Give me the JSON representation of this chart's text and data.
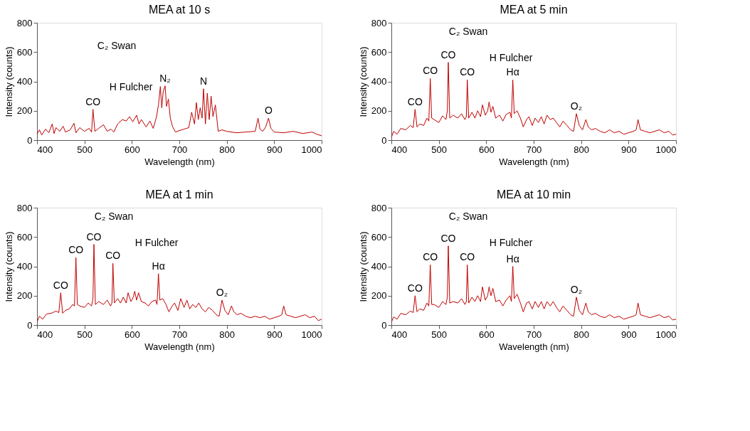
{
  "chart_data": [
    {
      "type": "line",
      "title": "MEA at 10 s",
      "xlabel": "Wavelength (nm)",
      "ylabel": "Intensity (counts)",
      "xlim": [
        400,
        1000
      ],
      "ylim": [
        0,
        800
      ],
      "xticks": [
        400,
        500,
        600,
        700,
        800,
        900,
        1000
      ],
      "yticks": [
        0,
        200,
        400,
        600,
        800
      ],
      "x": [
        400,
        405,
        410,
        418,
        425,
        432,
        436,
        440,
        448,
        455,
        460,
        470,
        478,
        482,
        490,
        500,
        510,
        515,
        518,
        522,
        530,
        540,
        548,
        556,
        562,
        570,
        580,
        588,
        595,
        602,
        610,
        615,
        620,
        630,
        638,
        645,
        652,
        656,
        660,
        663,
        666,
        670,
        673,
        677,
        681,
        686,
        692,
        700,
        710,
        720,
        726,
        732,
        736,
        740,
        744,
        748,
        751,
        755,
        759,
        763,
        767,
        771,
        776,
        782,
        790,
        800,
        820,
        840,
        860,
        866,
        870,
        876,
        882,
        888,
        893,
        900,
        920,
        940,
        960,
        980,
        990,
        1000
      ],
      "series": [
        {
          "color": "#c00000",
          "values": [
            40,
            70,
            35,
            75,
            50,
            110,
            45,
            85,
            60,
            95,
            55,
            70,
            115,
            50,
            85,
            60,
            80,
            55,
            210,
            60,
            80,
            105,
            60,
            75,
            55,
            110,
            140,
            130,
            160,
            125,
            170,
            110,
            140,
            90,
            130,
            80,
            160,
            240,
            365,
            220,
            330,
            370,
            230,
            280,
            150,
            90,
            55,
            65,
            75,
            85,
            190,
            110,
            255,
            140,
            220,
            150,
            350,
            110,
            320,
            140,
            300,
            160,
            240,
            60,
            70,
            60,
            50,
            55,
            60,
            150,
            75,
            60,
            90,
            150,
            80,
            55,
            50,
            60,
            45,
            55,
            40,
            30
          ]
        }
      ],
      "annotations": [
        "C₂ Swan",
        {
          "text": "CO",
          "x": 518,
          "y": 210
        },
        "H Fulcher",
        {
          "text": "N₂",
          "x": 670,
          "y": 370
        },
        {
          "text": "N",
          "x": 751,
          "y": 350
        },
        {
          "text": "O",
          "x": 888,
          "y": 150
        }
      ]
    },
    {
      "type": "line",
      "title": "MEA at 5 min",
      "xlabel": "Wavelength (nm)",
      "ylabel": "Intensity (counts)",
      "xlim": [
        400,
        1000
      ],
      "ylim": [
        0,
        800
      ],
      "xticks": [
        400,
        500,
        600,
        700,
        800,
        900,
        1000
      ],
      "yticks": [
        0,
        200,
        400,
        600,
        800
      ],
      "x": [
        400,
        405,
        412,
        420,
        430,
        440,
        446,
        450,
        454,
        460,
        468,
        475,
        479,
        482,
        485,
        490,
        500,
        508,
        515,
        518,
        520,
        523,
        530,
        540,
        548,
        555,
        558,
        560,
        563,
        570,
        576,
        582,
        588,
        592,
        598,
        603,
        606,
        610,
        614,
        620,
        628,
        635,
        642,
        650,
        653,
        656,
        659,
        665,
        672,
        678,
        685,
        690,
        697,
        703,
        710,
        716,
        722,
        728,
        735,
        741,
        748,
        755,
        762,
        770,
        778,
        784,
        790,
        796,
        803,
        810,
        815,
        822,
        830,
        840,
        850,
        860,
        870,
        880,
        890,
        900,
        910,
        916,
        920,
        925,
        935,
        945,
        955,
        965,
        975,
        985,
        993,
        1000
      ],
      "series": [
        {
          "color": "#c00000",
          "values": [
            20,
            60,
            40,
            80,
            70,
            100,
            85,
            210,
            90,
            110,
            100,
            150,
            130,
            420,
            150,
            140,
            120,
            165,
            140,
            200,
            530,
            150,
            170,
            150,
            180,
            140,
            160,
            410,
            150,
            190,
            150,
            200,
            160,
            240,
            170,
            200,
            260,
            190,
            230,
            150,
            170,
            130,
            175,
            190,
            150,
            410,
            180,
            200,
            150,
            90,
            140,
            160,
            100,
            150,
            120,
            160,
            110,
            170,
            140,
            150,
            120,
            90,
            130,
            100,
            70,
            60,
            180,
            100,
            70,
            140,
            90,
            70,
            80,
            60,
            50,
            70,
            50,
            60,
            40,
            50,
            60,
            70,
            140,
            70,
            60,
            50,
            60,
            70,
            50,
            60,
            35,
            40
          ]
        }
      ],
      "annotations": [
        "C₂ Swan",
        {
          "text": "CO",
          "x": 450,
          "y": 210
        },
        {
          "text": "CO",
          "x": 482,
          "y": 420
        },
        {
          "text": "CO",
          "x": 520,
          "y": 530
        },
        {
          "text": "CO",
          "x": 560,
          "y": 410
        },
        "H Fulcher",
        {
          "text": "Hα",
          "x": 656,
          "y": 410
        },
        {
          "text": "O₂",
          "x": 790,
          "y": 180
        }
      ]
    },
    {
      "type": "line",
      "title": "MEA at 1 min",
      "xlabel": "Wavelength (nm)",
      "ylabel": "Intensity (counts)",
      "xlim": [
        400,
        1000
      ],
      "ylim": [
        0,
        800
      ],
      "xticks": [
        400,
        500,
        600,
        700,
        800,
        900,
        1000
      ],
      "yticks": [
        0,
        200,
        400,
        600,
        800
      ],
      "x": [
        400,
        405,
        412,
        420,
        430,
        440,
        446,
        450,
        454,
        460,
        468,
        475,
        479,
        482,
        485,
        490,
        500,
        508,
        515,
        518,
        520,
        523,
        530,
        540,
        548,
        555,
        558,
        560,
        563,
        570,
        576,
        582,
        588,
        592,
        598,
        603,
        606,
        610,
        614,
        620,
        628,
        635,
        642,
        650,
        653,
        656,
        659,
        665,
        672,
        678,
        685,
        690,
        697,
        703,
        710,
        716,
        722,
        728,
        735,
        741,
        748,
        755,
        762,
        770,
        778,
        784,
        790,
        796,
        803,
        810,
        815,
        822,
        830,
        840,
        850,
        860,
        870,
        880,
        890,
        900,
        910,
        916,
        920,
        925,
        935,
        945,
        955,
        965,
        975,
        985,
        993,
        1000
      ],
      "series": [
        {
          "color": "#c00000",
          "values": [
            20,
            60,
            40,
            75,
            80,
            95,
            85,
            220,
            80,
            100,
            110,
            140,
            130,
            460,
            140,
            130,
            120,
            150,
            130,
            180,
            550,
            140,
            160,
            140,
            170,
            130,
            150,
            420,
            150,
            180,
            150,
            190,
            150,
            220,
            160,
            190,
            230,
            170,
            220,
            160,
            150,
            130,
            160,
            170,
            140,
            350,
            170,
            180,
            140,
            90,
            130,
            150,
            100,
            180,
            120,
            170,
            110,
            140,
            120,
            150,
            110,
            90,
            120,
            100,
            70,
            60,
            170,
            100,
            70,
            130,
            90,
            70,
            80,
            60,
            50,
            60,
            50,
            60,
            40,
            50,
            60,
            70,
            130,
            70,
            60,
            50,
            60,
            70,
            50,
            60,
            30,
            40
          ]
        }
      ],
      "annotations": [
        "C₂ Swan",
        {
          "text": "CO",
          "x": 450,
          "y": 220
        },
        {
          "text": "CO",
          "x": 482,
          "y": 460
        },
        {
          "text": "CO",
          "x": 520,
          "y": 550
        },
        {
          "text": "CO",
          "x": 560,
          "y": 420
        },
        "H Fulcher",
        {
          "text": "Hα",
          "x": 656,
          "y": 350
        },
        {
          "text": "O₂",
          "x": 790,
          "y": 170
        }
      ]
    },
    {
      "type": "line",
      "title": "MEA at 10 min",
      "xlabel": "Wavelength (nm)",
      "ylabel": "Intensity (counts)",
      "xlim": [
        400,
        1000
      ],
      "ylim": [
        0,
        800
      ],
      "xticks": [
        400,
        500,
        600,
        700,
        800,
        900,
        1000
      ],
      "yticks": [
        0,
        200,
        400,
        600,
        800
      ],
      "x": [
        400,
        405,
        412,
        420,
        430,
        440,
        446,
        450,
        454,
        460,
        468,
        475,
        479,
        482,
        485,
        490,
        500,
        508,
        515,
        518,
        520,
        523,
        530,
        540,
        548,
        555,
        558,
        560,
        563,
        570,
        576,
        582,
        588,
        592,
        598,
        603,
        606,
        610,
        614,
        620,
        628,
        635,
        642,
        650,
        653,
        656,
        659,
        665,
        672,
        678,
        685,
        690,
        697,
        703,
        710,
        716,
        722,
        728,
        735,
        741,
        748,
        755,
        762,
        770,
        778,
        784,
        790,
        796,
        803,
        810,
        815,
        822,
        830,
        840,
        850,
        860,
        870,
        880,
        890,
        900,
        910,
        916,
        920,
        925,
        935,
        945,
        955,
        965,
        975,
        985,
        993,
        1000
      ],
      "series": [
        {
          "color": "#c00000",
          "values": [
            20,
            55,
            40,
            80,
            70,
            95,
            85,
            200,
            90,
            110,
            100,
            150,
            130,
            410,
            140,
            140,
            120,
            160,
            140,
            190,
            540,
            150,
            160,
            150,
            180,
            140,
            160,
            410,
            150,
            190,
            160,
            200,
            160,
            260,
            170,
            200,
            260,
            200,
            250,
            160,
            170,
            130,
            170,
            200,
            160,
            400,
            180,
            210,
            150,
            90,
            150,
            160,
            110,
            160,
            120,
            160,
            110,
            160,
            130,
            160,
            120,
            90,
            130,
            100,
            70,
            60,
            190,
            100,
            70,
            150,
            90,
            70,
            80,
            60,
            50,
            70,
            50,
            60,
            40,
            50,
            60,
            70,
            150,
            70,
            60,
            50,
            60,
            70,
            50,
            60,
            35,
            40
          ]
        }
      ],
      "annotations": [
        "C₂ Swan",
        {
          "text": "CO",
          "x": 450,
          "y": 200
        },
        {
          "text": "CO",
          "x": 482,
          "y": 410
        },
        {
          "text": "CO",
          "x": 520,
          "y": 540
        },
        {
          "text": "CO",
          "x": 560,
          "y": 410
        },
        "H Fulcher",
        {
          "text": "Hα",
          "x": 656,
          "y": 400
        },
        {
          "text": "O₂",
          "x": 790,
          "y": 190
        }
      ]
    }
  ]
}
